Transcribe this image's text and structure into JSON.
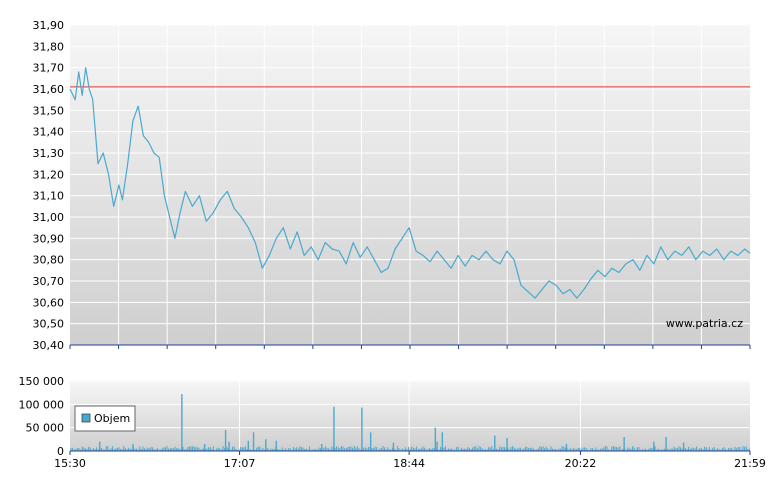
{
  "watermark": "www.patria.cz",
  "colors": {
    "plot_bg_top": "#f6f6f6",
    "plot_bg_bottom": "#cfcfcf",
    "grid": "#ffffff",
    "price_line": "#4aa9cf",
    "reference_line": "#e03a2f",
    "volume_bar": "#4aa9cf",
    "axis": "#1f3f8f"
  },
  "chart_data": [
    {
      "type": "line",
      "title": "",
      "xlabel": "",
      "ylabel": "",
      "ylim": [
        30.4,
        31.9
      ],
      "y_ticks": [
        "30,40",
        "30,50",
        "30,60",
        "30,70",
        "30,80",
        "30,90",
        "31,00",
        "31,10",
        "31,20",
        "31,30",
        "31,40",
        "31,50",
        "31,60",
        "31,70",
        "31,80",
        "31,90"
      ],
      "x_time_range": [
        "15:30",
        "21:59"
      ],
      "reference_line": 31.61,
      "grid": true,
      "series": [
        {
          "x": [
            "15:30",
            "15:33",
            "15:35",
            "15:37",
            "15:39",
            "15:41",
            "15:43",
            "15:46",
            "15:49",
            "15:52",
            "15:55",
            "15:58",
            "16:00",
            "16:03",
            "16:06",
            "16:09",
            "16:12",
            "16:15",
            "16:18",
            "16:21",
            "16:24",
            "16:27",
            "16:30",
            "16:33",
            "16:36",
            "16:40",
            "16:44",
            "16:48",
            "16:52",
            "16:56",
            "17:00",
            "17:04",
            "17:08",
            "17:12",
            "17:16",
            "17:20",
            "17:24",
            "17:28",
            "17:32",
            "17:36",
            "17:40",
            "17:44",
            "17:48",
            "17:52",
            "17:56",
            "18:00",
            "18:04",
            "18:08",
            "18:12",
            "18:16",
            "18:20",
            "18:24",
            "18:28",
            "18:32",
            "18:36",
            "18:40",
            "18:44",
            "18:48",
            "18:52",
            "18:56",
            "19:00",
            "19:04",
            "19:08",
            "19:12",
            "19:16",
            "19:20",
            "19:24",
            "19:28",
            "19:32",
            "19:36",
            "19:40",
            "19:44",
            "19:48",
            "19:52",
            "19:56",
            "20:00",
            "20:04",
            "20:08",
            "20:12",
            "20:16",
            "20:20",
            "20:24",
            "20:28",
            "20:32",
            "20:36",
            "20:40",
            "20:44",
            "20:48",
            "20:52",
            "20:56",
            "21:00",
            "21:04",
            "21:08",
            "21:12",
            "21:16",
            "21:20",
            "21:24",
            "21:28",
            "21:32",
            "21:36",
            "21:40",
            "21:44",
            "21:48",
            "21:52",
            "21:56",
            "21:59"
          ],
          "y": [
            31.6,
            31.55,
            31.68,
            31.57,
            31.7,
            31.6,
            31.55,
            31.25,
            31.3,
            31.2,
            31.05,
            31.15,
            31.08,
            31.25,
            31.45,
            31.52,
            31.38,
            31.35,
            31.3,
            31.28,
            31.1,
            31.0,
            30.9,
            31.02,
            31.12,
            31.05,
            31.1,
            30.98,
            31.02,
            31.08,
            31.12,
            31.04,
            31.0,
            30.95,
            30.88,
            30.76,
            30.82,
            30.9,
            30.95,
            30.85,
            30.93,
            30.82,
            30.86,
            30.8,
            30.88,
            30.85,
            30.84,
            30.78,
            30.88,
            30.81,
            30.86,
            30.8,
            30.74,
            30.76,
            30.85,
            30.9,
            30.95,
            30.84,
            30.82,
            30.79,
            30.84,
            30.8,
            30.76,
            30.82,
            30.77,
            30.82,
            30.8,
            30.84,
            30.8,
            30.78,
            30.84,
            30.8,
            30.68,
            30.65,
            30.62,
            30.66,
            30.7,
            30.68,
            30.64,
            30.66,
            30.62,
            30.66,
            30.71,
            30.75,
            30.72,
            30.76,
            30.74,
            30.78,
            30.8,
            30.75,
            30.82,
            30.78,
            30.86,
            30.8,
            30.84,
            30.82,
            30.86,
            30.8,
            30.84,
            30.82,
            30.85,
            30.8,
            30.84,
            30.82,
            30.85,
            30.83
          ]
        }
      ]
    },
    {
      "type": "bar",
      "title": "",
      "xlabel": "",
      "ylabel": "",
      "ylim": [
        0,
        150000
      ],
      "y_ticks": [
        "0",
        "50 000",
        "100 000",
        "150 000"
      ],
      "x_ticks": [
        "15:30",
        "17:07",
        "18:44",
        "20:22",
        "21:59"
      ],
      "legend": "top-left",
      "series": [
        {
          "name": "Objem",
          "spikes_x": [
            "15:47",
            "16:06",
            "16:34",
            "16:47",
            "16:59",
            "17:01",
            "17:12",
            "17:15",
            "17:22",
            "17:28",
            "17:54",
            "18:01",
            "18:17",
            "18:22",
            "18:35",
            "18:59",
            "19:00",
            "19:03",
            "19:33",
            "19:40",
            "20:14",
            "20:47",
            "21:04",
            "21:11",
            "21:21"
          ],
          "spikes_y": [
            20000,
            15000,
            122000,
            15000,
            45000,
            20000,
            22000,
            40000,
            25000,
            22000,
            15000,
            95000,
            93000,
            40000,
            18000,
            50000,
            20000,
            40000,
            33000,
            28000,
            15000,
            30000,
            20000,
            30000,
            18000
          ]
        }
      ]
    }
  ]
}
